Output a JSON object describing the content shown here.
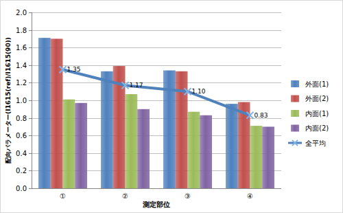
{
  "chart_data": {
    "type": "bar",
    "categories": [
      "①",
      "②",
      "③",
      "④"
    ],
    "x_label": "測定部位",
    "y_label": "配向パラメーター(I1615(ref)/I1615(90))",
    "series": [
      {
        "name": "外面(1)",
        "color": "#4f81bd",
        "values": [
          1.71,
          1.33,
          1.34,
          0.96
        ]
      },
      {
        "name": "外面(2)",
        "color": "#c0504d",
        "values": [
          1.7,
          1.39,
          1.33,
          0.98
        ]
      },
      {
        "name": "内面(1)",
        "color": "#9bbb59",
        "values": [
          1.01,
          1.07,
          0.87,
          0.71
        ]
      },
      {
        "name": "内面(2)",
        "color": "#8064a2",
        "values": [
          0.97,
          0.9,
          0.83,
          0.7
        ]
      },
      {
        "name": "全平均",
        "type": "line",
        "color": "#4f81bd",
        "marker": "x",
        "data_labels": true,
        "values": [
          1.35,
          1.17,
          1.1,
          0.83
        ],
        "value_labels": [
          "1.35",
          "1.17",
          "1.10",
          "0.83"
        ]
      }
    ],
    "ylim": [
      0,
      2
    ],
    "yticks": [
      {
        "value": 0,
        "label": "0.0"
      },
      0.2,
      0.4,
      0.6,
      0.8,
      {
        "value": 1,
        "label": "1.0"
      },
      1.2,
      1.4,
      1.6,
      1.8,
      {
        "value": 2,
        "label": "2.0"
      }
    ],
    "grid": true,
    "legend": "right"
  }
}
